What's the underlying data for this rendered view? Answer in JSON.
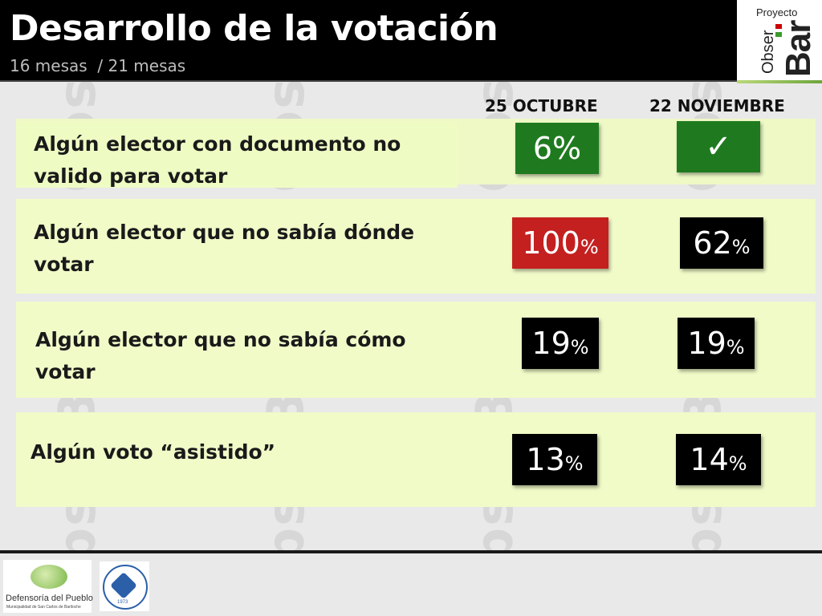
{
  "header": {
    "title": "Desarrollo de la votación",
    "subtitle": "16 mesas  / 21 mesas"
  },
  "logo": {
    "proyecto": "Proyecto",
    "obser": "Obser",
    "bar": "Bar"
  },
  "columns": [
    "25 OCTUBRE",
    "22 NOVIEMBRE"
  ],
  "rows": [
    {
      "label_line1": "Algún elector con documento no",
      "label_line2": "valido para votar",
      "oct": "6%",
      "nov_icon": "check-icon"
    },
    {
      "label_line1": "Algún elector que no sabía dónde",
      "label_line2": "votar",
      "oct_num": "100",
      "nov_num": "62"
    },
    {
      "label_line1": "Algún elector que no sabía cómo",
      "label_line2": "votar",
      "oct_num": "19",
      "nov_num": "19"
    },
    {
      "label_line1": "Algún voto “asistido”",
      "oct_num": "13",
      "nov_num": "14"
    }
  ],
  "pct": "%",
  "check": "✓",
  "colors": {
    "green": "#1f7a1f",
    "red": "#c42020",
    "black": "#000000",
    "row_bg": "#f0fbc8"
  },
  "footer": {
    "defensoria_name": "Defensoría del Pueblo",
    "defensoria_sub": "Municipalidad de San Carlos de Bariloche",
    "uni_year": "1973"
  }
}
